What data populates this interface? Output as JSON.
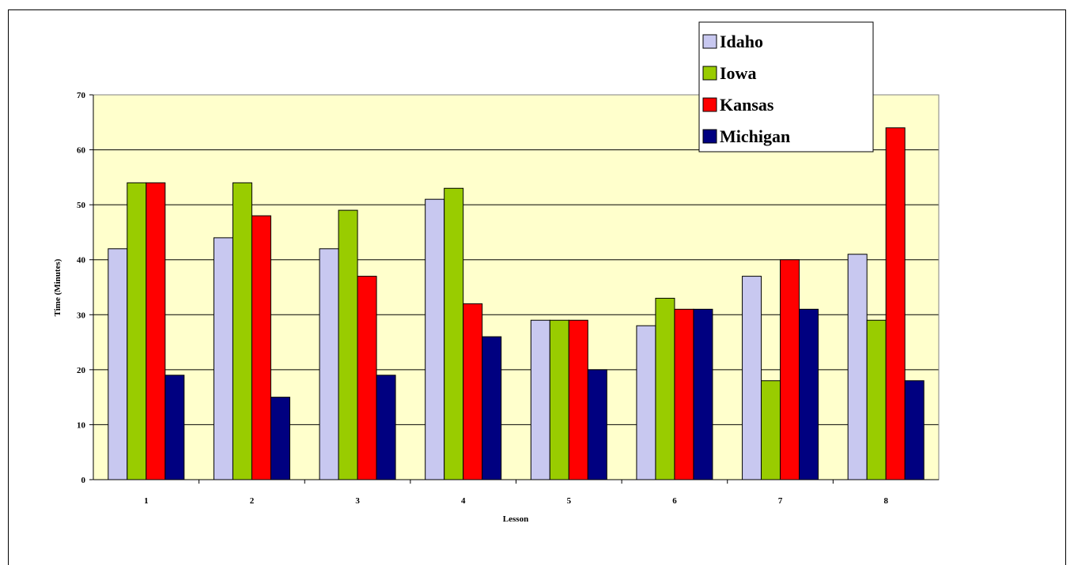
{
  "chart_data": {
    "type": "bar",
    "title": "",
    "xlabel": "Lesson",
    "ylabel": "Time (Minutes)",
    "categories": [
      "1",
      "2",
      "3",
      "4",
      "5",
      "6",
      "7",
      "8"
    ],
    "ylim": [
      0,
      70
    ],
    "yticks": [
      0,
      10,
      20,
      30,
      40,
      50,
      60,
      70
    ],
    "grid": true,
    "legend_position": "top-right",
    "plot_background": "#FFFFCC",
    "series": [
      {
        "name": "Idaho",
        "color": "#C8C8F0",
        "values": [
          42,
          44,
          42,
          51,
          29,
          28,
          37,
          41
        ]
      },
      {
        "name": "Iowa",
        "color": "#99CC00",
        "values": [
          54,
          54,
          49,
          53,
          29,
          33,
          18,
          29
        ]
      },
      {
        "name": "Kansas",
        "color": "#FF0000",
        "values": [
          54,
          48,
          37,
          32,
          29,
          31,
          40,
          64
        ]
      },
      {
        "name": "Michigan",
        "color": "#000080",
        "values": [
          19,
          15,
          19,
          26,
          20,
          31,
          31,
          18
        ]
      }
    ]
  }
}
